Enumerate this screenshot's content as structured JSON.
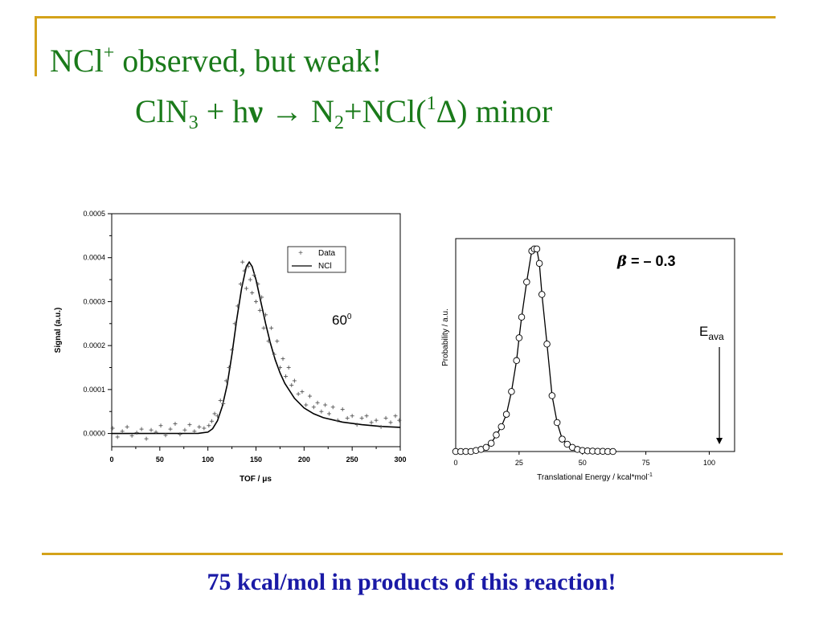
{
  "slide": {
    "title_line1": {
      "main": "NCl",
      "sup": "+",
      "rest": " observed, but weak!"
    },
    "title_line2": {
      "a": "ClN",
      "sub1": "3",
      "b": " + h",
      "nu": "ν",
      "c": " → N",
      "sub2": "2",
      "d": "+NCl(",
      "sup": "1",
      "e": "Δ)  minor"
    },
    "footer": "75 kcal/mol in products of  this reaction!",
    "colors": {
      "title": "#1a7a1a",
      "footer": "#1a1aa6",
      "rule": "#d4a21a"
    }
  },
  "chart_data": [
    {
      "type": "scatter",
      "ylabel": "Signal (a.u.)",
      "xlabel": "TOF / μs",
      "x_ticks": [
        "0",
        "50",
        "100",
        "150",
        "200",
        "250",
        "300"
      ],
      "y_ticks": [
        "0.0000",
        "0.0001",
        "0.0002",
        "0.0003",
        "0.0004",
        "0.0005"
      ],
      "xlim": [
        0,
        300
      ],
      "ylim": [
        -3e-05,
        0.0005
      ],
      "annotation": {
        "base": "60",
        "sup": "0"
      },
      "legend": {
        "position": "top-right",
        "entries": [
          {
            "marker": "+",
            "label": "Data"
          },
          {
            "marker": "line",
            "label": "NCl"
          }
        ]
      },
      "series": [
        {
          "name": "NCl",
          "style": "line",
          "x": [
            0,
            90,
            100,
            105,
            110,
            115,
            120,
            125,
            130,
            135,
            140,
            143,
            146,
            150,
            155,
            160,
            165,
            170,
            175,
            180,
            190,
            200,
            210,
            220,
            240,
            260,
            280,
            300
          ],
          "y": [
            0,
            3e-07,
            3e-06,
            1.1e-05,
            2.9e-05,
            6.2e-05,
            0.00011,
            0.00018,
            0.00026,
            0.00033,
            0.00038,
            0.00039,
            0.00038,
            0.00035,
            0.0003,
            0.00025,
            0.000205,
            0.000168,
            0.000138,
            0.000114,
            8e-05,
            5.8e-05,
            4.5e-05,
            3.6e-05,
            2.6e-05,
            2e-05,
            1.6e-05,
            1.4e-05
          ]
        },
        {
          "name": "Data",
          "style": "plus",
          "x": [
            1,
            6,
            11,
            16,
            21,
            26,
            31,
            36,
            41,
            46,
            51,
            56,
            61,
            66,
            71,
            76,
            81,
            86,
            91,
            96,
            101,
            104,
            107,
            110,
            113,
            116,
            119,
            122,
            125,
            128,
            131,
            134,
            136,
            138,
            140,
            142,
            144,
            146,
            148,
            150,
            152,
            154,
            156,
            158,
            160,
            163,
            166,
            169,
            172,
            175,
            178,
            181,
            184,
            187,
            190,
            194,
            198,
            202,
            206,
            210,
            214,
            218,
            222,
            226,
            230,
            235,
            240,
            245,
            250,
            255,
            260,
            265,
            270,
            275,
            280,
            285,
            290,
            295,
            299
          ],
          "y": [
            1.2e-05,
            -8e-06,
            5e-06,
            1.5e-05,
            -5e-06,
            2e-06,
            1e-05,
            -1.2e-05,
            8e-06,
            3e-06,
            1.8e-05,
            -4e-06,
            1e-05,
            2.2e-05,
            -2e-06,
            8e-06,
            2e-05,
            5e-06,
            1.5e-05,
            1.2e-05,
            1.8e-05,
            2.8e-05,
            4.5e-05,
            4e-05,
            7.5e-05,
            6.8e-05,
            0.00012,
            0.00015,
            0.00019,
            0.00025,
            0.00029,
            0.00034,
            0.00039,
            0.00037,
            0.00033,
            0.00038,
            0.00035,
            0.00032,
            0.00036,
            0.0003,
            0.00034,
            0.00028,
            0.00031,
            0.00024,
            0.00027,
            0.00021,
            0.00024,
            0.00018,
            0.00021,
            0.00015,
            0.00017,
            0.00013,
            0.00015,
            0.00011,
            0.00012,
            9e-05,
            9.5e-05,
            6.5e-05,
            8.5e-05,
            6e-05,
            7e-05,
            5e-05,
            6.5e-05,
            4.5e-05,
            6e-05,
            3e-05,
            5.5e-05,
            3.5e-05,
            4e-05,
            2e-05,
            3.5e-05,
            4e-05,
            2.5e-05,
            3e-05,
            1.5e-05,
            3.5e-05,
            2.5e-05,
            4e-05,
            3e-05
          ]
        }
      ]
    },
    {
      "type": "line",
      "ylabel": "Probability / a.u.",
      "xlabel": "Translational Energy / kcal*mol",
      "xlabel_sup": "-1",
      "x_ticks": [
        "0",
        "25",
        "50",
        "75",
        "100"
      ],
      "xlim": [
        0,
        110
      ],
      "ylim": [
        0,
        1.03
      ],
      "annotation": {
        "beta": "β",
        "text": " = – 0.3"
      },
      "marker": {
        "label": "E",
        "sub": "ava",
        "x": 104
      },
      "series": [
        {
          "name": "",
          "style": "line-circles",
          "x": [
            0,
            2,
            4,
            6,
            8,
            10,
            12,
            14,
            16,
            18,
            20,
            22,
            24,
            25,
            26,
            28,
            30,
            31,
            32,
            33,
            34,
            36,
            38,
            40,
            42,
            44,
            46,
            48,
            50,
            52,
            54,
            56,
            58,
            60,
            62
          ],
          "y": [
            0,
            0,
            0,
            0,
            0.005,
            0.01,
            0.02,
            0.04,
            0.08,
            0.12,
            0.18,
            0.29,
            0.44,
            0.55,
            0.65,
            0.82,
            0.97,
            0.98,
            0.98,
            0.91,
            0.76,
            0.52,
            0.27,
            0.14,
            0.06,
            0.035,
            0.02,
            0.01,
            0.005,
            0.003,
            0.002,
            0.001,
            0.001,
            0,
            0
          ]
        }
      ]
    }
  ]
}
